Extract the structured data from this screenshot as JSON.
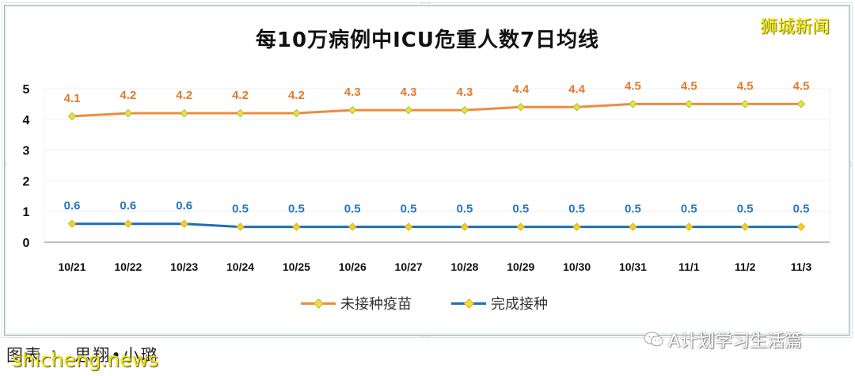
{
  "header": {
    "title": "每10万病例中ICU危重人数7日均线",
    "brand": "狮城新闻"
  },
  "chart_data": {
    "type": "line",
    "title": "每10万病例中ICU危重人数7日均线",
    "xlabel": "",
    "ylabel": "",
    "ylim": [
      0,
      5
    ],
    "yticks": [
      "0",
      "1",
      "2",
      "3",
      "4",
      "5"
    ],
    "grid": true,
    "legend_position": "bottom",
    "categories": [
      "10/21",
      "10/22",
      "10/23",
      "10/24",
      "10/25",
      "10/26",
      "10/27",
      "10/28",
      "10/29",
      "10/30",
      "10/31",
      "11/1",
      "11/2",
      "11/3"
    ],
    "series": [
      {
        "name": "未接种疫苗",
        "color": "#ed8c3f",
        "marker_color": "#f0e130",
        "values": [
          4.1,
          4.2,
          4.2,
          4.2,
          4.2,
          4.3,
          4.3,
          4.3,
          4.4,
          4.4,
          4.5,
          4.5,
          4.5,
          4.5
        ],
        "labels": [
          "4.1",
          "4.2",
          "4.2",
          "4.2",
          "4.2",
          "4.3",
          "4.3",
          "4.3",
          "4.4",
          "4.4",
          "4.5",
          "4.5",
          "4.5",
          "4.5"
        ]
      },
      {
        "name": "完成接种",
        "color": "#1e6fb5",
        "marker_color": "#f0d020",
        "values": [
          0.6,
          0.6,
          0.6,
          0.5,
          0.5,
          0.5,
          0.5,
          0.5,
          0.5,
          0.5,
          0.5,
          0.5,
          0.5,
          0.5
        ],
        "labels": [
          "0.6",
          "0.6",
          "0.6",
          "0.5",
          "0.5",
          "0.5",
          "0.5",
          "0.5",
          "0.5",
          "0.5",
          "0.5",
          "0.5",
          "0.5",
          "0.5"
        ]
      }
    ]
  },
  "legend": {
    "items": [
      {
        "label": "未接种疫苗",
        "color": "#ed8c3f"
      },
      {
        "label": "完成接种",
        "color": "#1e6fb5"
      }
    ]
  },
  "footer": {
    "caption": "图表 ： 思翔•小璐",
    "watermark_site": "shicheng.news",
    "watermark_wechat": "A计划学习生活篇"
  },
  "handles": {
    "dots": "····"
  }
}
